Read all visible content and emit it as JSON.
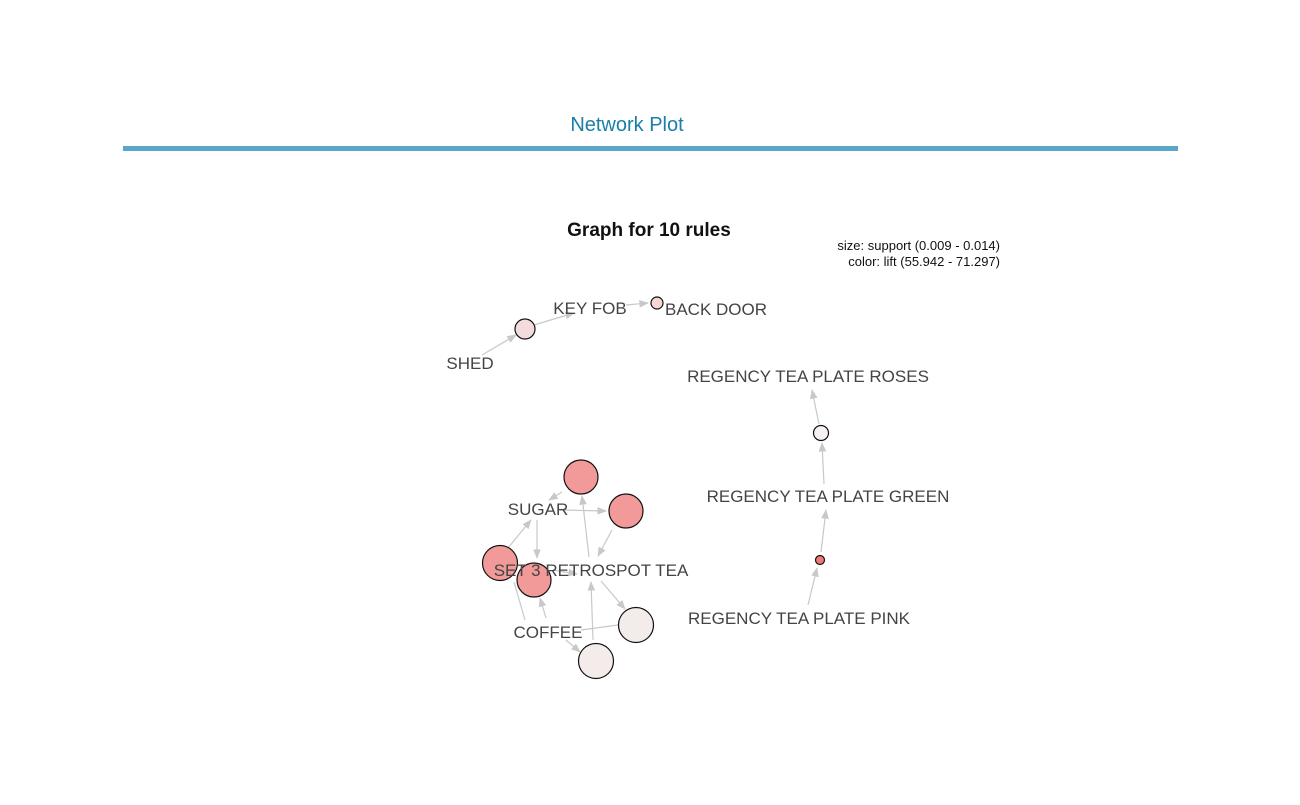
{
  "tab": {
    "title": "Network Plot"
  },
  "plot": {
    "title": "Graph for 10 rules",
    "legend_size": "size: support (0.009 - 0.014)",
    "legend_color": "color: lift (55.942 - 71.297)"
  },
  "items": [
    {
      "id": "shed",
      "label": "SHED"
    },
    {
      "id": "keyfob",
      "label": "KEY FOB"
    },
    {
      "id": "backdoor",
      "label": "BACK DOOR"
    },
    {
      "id": "roses",
      "label": "REGENCY TEA PLATE ROSES"
    },
    {
      "id": "green",
      "label": "REGENCY TEA PLATE GREEN"
    },
    {
      "id": "pink",
      "label": "REGENCY TEA PLATE PINK"
    },
    {
      "id": "sugar",
      "label": "SUGAR"
    },
    {
      "id": "set3",
      "label": "SET 3 RETROSPOT TEA"
    },
    {
      "id": "coffee",
      "label": "COFFEE"
    }
  ],
  "colors": {
    "low_lift": "#f3ece9",
    "high_lift": "#f29a9a",
    "edge": "#c8c8c8",
    "accent": "#1a7fa8"
  }
}
